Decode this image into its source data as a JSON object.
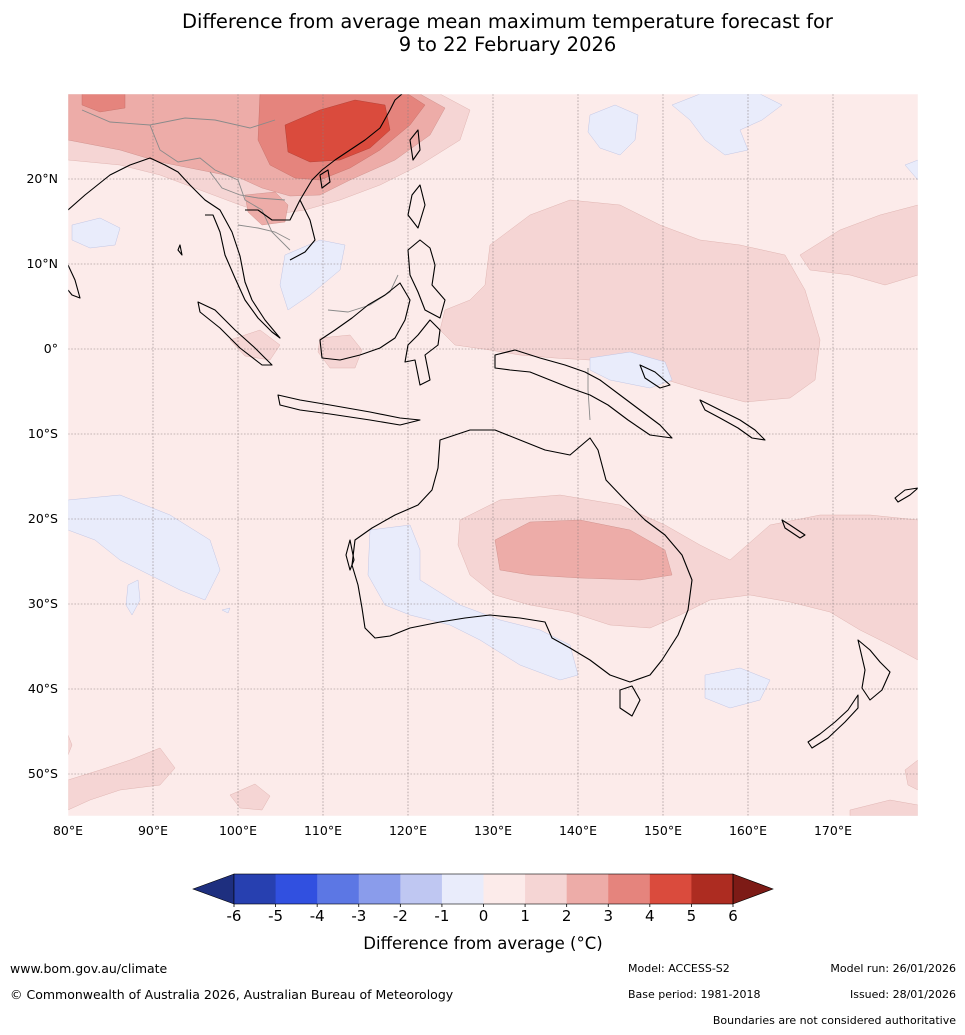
{
  "title": {
    "line1": "Difference from average mean maximum temperature forecast for",
    "line2": "9 to 22 February 2026"
  },
  "map": {
    "region": "Indian Ocean, Maritime Continent, Australia and Western Pacific",
    "latitude_labels": [
      "20°N",
      "10°N",
      "0°",
      "10°S",
      "20°S",
      "30°S",
      "40°S",
      "50°S"
    ],
    "longitude_labels": [
      "80°E",
      "90°E",
      "100°E",
      "110°E",
      "120°E",
      "130°E",
      "140°E",
      "150°E",
      "160°E",
      "170°E"
    ]
  },
  "colorbar": {
    "title": "Difference from average (°C)",
    "tick_labels": [
      "-6",
      "-5",
      "-4",
      "-3",
      "-2",
      "-1",
      "0",
      "1",
      "2",
      "3",
      "4",
      "5",
      "6"
    ],
    "colors": {
      "below_min": "#1e2f7f",
      "bins": [
        "#2740b0",
        "#3150e0",
        "#5c77e4",
        "#8a9ceb",
        "#bfc7f2",
        "#e9ecfb",
        "#fcebea",
        "#f5d5d4",
        "#edaca8",
        "#e5847d",
        "#da4b3d",
        "#ad2c21"
      ],
      "above_max": "#7d1b16"
    }
  },
  "footer": {
    "website": "www.bom.gov.au/climate",
    "copyright": "© Commonwealth of Australia 2026, Australian Bureau of Meteorology",
    "model": "Model: ACCESS-S2",
    "base_period": "Base period: 1981-2018",
    "model_run": "Model run: 26/01/2026",
    "issued": "Issued: 28/01/2026",
    "disclaimer": "Boundaries are not considered authoritative"
  }
}
